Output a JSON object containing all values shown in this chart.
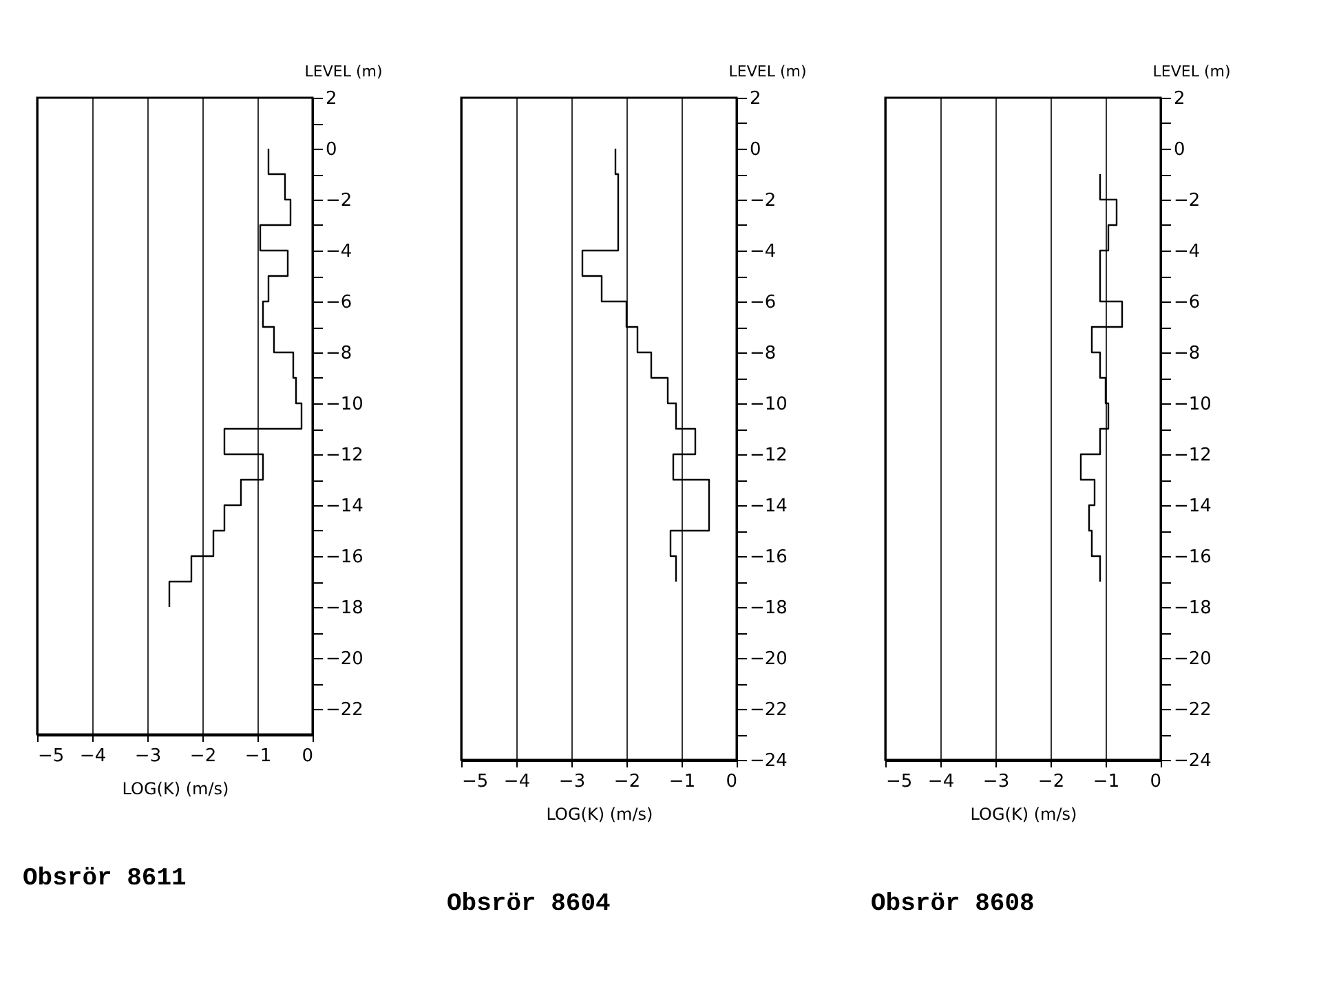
{
  "chart_data": [
    {
      "type": "line",
      "title": "Obsrör 8611",
      "xlabel": "LOG(K) (m/s)",
      "ylabel": "LEVEL (m)",
      "color": "#000000",
      "grid": "x",
      "xlim": [
        -5,
        0
      ],
      "xticks": [
        -5,
        -4,
        -3,
        -2,
        -1,
        0
      ],
      "ylim": [
        -23,
        2
      ],
      "yticks": [
        2,
        {
          "value": 1,
          "label": null
        },
        0,
        {
          "value": -1,
          "label": null
        },
        -2,
        {
          "value": -3,
          "label": null
        },
        -4,
        {
          "value": -5,
          "label": null
        },
        -6,
        {
          "value": -7,
          "label": null
        },
        -8,
        {
          "value": -9,
          "label": null
        },
        -10,
        {
          "value": -11,
          "label": null
        },
        -12,
        {
          "value": -13,
          "label": null
        },
        -14,
        {
          "value": -15,
          "label": null
        },
        -16,
        {
          "value": -17,
          "label": null
        },
        -18,
        {
          "value": -19,
          "label": null
        },
        -20,
        {
          "value": -21,
          "label": null
        },
        -22
      ],
      "x": [
        -0.8,
        -0.8,
        -0.5,
        -0.5,
        -0.4,
        -0.4,
        -0.95,
        -0.95,
        -0.45,
        -0.45,
        -0.8,
        -0.8,
        -0.9,
        -0.9,
        -0.7,
        -0.7,
        -0.35,
        -0.35,
        -0.3,
        -0.3,
        -0.2,
        -0.2,
        -1.6,
        -1.6,
        -0.9,
        -0.9,
        -1.3,
        -1.3,
        -1.6,
        -1.6,
        -1.8,
        -1.8,
        -2.2,
        -2.2,
        -2.6,
        -2.6
      ],
      "values": [
        0,
        -1,
        -1,
        -2,
        -2,
        -3,
        -3,
        -4,
        -4,
        -5,
        -5,
        -6,
        -6,
        -7,
        -7,
        -8,
        -8,
        -9,
        -9,
        -10,
        -10,
        -11,
        -11,
        -12,
        -12,
        -13,
        -13,
        -14,
        -14,
        -15,
        -15,
        -16,
        -16,
        -17,
        -17,
        -18
      ]
    },
    {
      "type": "line",
      "title": "Obsrör 8604",
      "xlabel": "LOG(K) (m/s)",
      "ylabel": "LEVEL (m)",
      "color": "#000000",
      "grid": "x",
      "xlim": [
        -5,
        0
      ],
      "xticks": [
        -5,
        -4,
        -3,
        -2,
        -1,
        0
      ],
      "ylim": [
        -24,
        2
      ],
      "yticks": [
        2,
        {
          "value": 1,
          "label": null
        },
        0,
        {
          "value": -1,
          "label": null
        },
        -2,
        {
          "value": -3,
          "label": null
        },
        -4,
        {
          "value": -5,
          "label": null
        },
        -6,
        {
          "value": -7,
          "label": null
        },
        -8,
        {
          "value": -9,
          "label": null
        },
        -10,
        {
          "value": -11,
          "label": null
        },
        -12,
        {
          "value": -13,
          "label": null
        },
        -14,
        {
          "value": -15,
          "label": null
        },
        -16,
        {
          "value": -17,
          "label": null
        },
        -18,
        {
          "value": -19,
          "label": null
        },
        -20,
        {
          "value": -21,
          "label": null
        },
        -22,
        {
          "value": -23,
          "label": null
        },
        -24
      ],
      "x": [
        -2.2,
        -2.2,
        -2.15,
        -2.15,
        -2.8,
        -2.8,
        -2.45,
        -2.45,
        -2.0,
        -2.0,
        -1.8,
        -1.8,
        -1.55,
        -1.55,
        -1.25,
        -1.25,
        -1.1,
        -1.1,
        -0.75,
        -0.75,
        -1.15,
        -1.15,
        -0.5,
        -0.5,
        -1.2,
        -1.2,
        -1.1,
        -1.1
      ],
      "values": [
        0,
        -1,
        -1,
        -4,
        -4,
        -5,
        -5,
        -6,
        -6,
        -7,
        -7,
        -8,
        -8,
        -9,
        -9,
        -10,
        -10,
        -11,
        -11,
        -12,
        -12,
        -13,
        -13,
        -15,
        -15,
        -16,
        -16,
        -17
      ]
    },
    {
      "type": "line",
      "title": "Obsrör 8608",
      "xlabel": "LOG(K) (m/s)",
      "ylabel": "LEVEL (m)",
      "color": "#000000",
      "grid": "x",
      "xlim": [
        -5,
        0
      ],
      "xticks": [
        -5,
        -4,
        -3,
        -2,
        -1,
        0
      ],
      "ylim": [
        -24,
        2
      ],
      "yticks": [
        2,
        {
          "value": 1,
          "label": null
        },
        0,
        {
          "value": -1,
          "label": null
        },
        -2,
        {
          "value": -3,
          "label": null
        },
        -4,
        {
          "value": -5,
          "label": null
        },
        -6,
        {
          "value": -7,
          "label": null
        },
        -8,
        {
          "value": -9,
          "label": null
        },
        -10,
        {
          "value": -11,
          "label": null
        },
        -12,
        {
          "value": -13,
          "label": null
        },
        -14,
        {
          "value": -15,
          "label": null
        },
        -16,
        {
          "value": -17,
          "label": null
        },
        -18,
        {
          "value": -19,
          "label": null
        },
        -20,
        {
          "value": -21,
          "label": null
        },
        -22,
        {
          "value": -23,
          "label": null
        },
        -24
      ],
      "x": [
        -1.1,
        -1.1,
        -0.8,
        -0.8,
        -0.95,
        -0.95,
        -1.1,
        -1.1,
        -0.7,
        -0.7,
        -1.25,
        -1.25,
        -1.1,
        -1.1,
        -1.0,
        -1.0,
        -0.95,
        -0.95,
        -1.1,
        -1.1,
        -1.45,
        -1.45,
        -1.2,
        -1.2,
        -1.3,
        -1.3,
        -1.25,
        -1.25,
        -1.1,
        -1.1
      ],
      "values": [
        -1,
        -2,
        -2,
        -3,
        -3,
        -4,
        -4,
        -6,
        -6,
        -7,
        -7,
        -8,
        -8,
        -9,
        -9,
        -10,
        -10,
        -11,
        -11,
        -12,
        -12,
        -13,
        -13,
        -14,
        -14,
        -15,
        -15,
        -16,
        -16,
        -17
      ]
    }
  ]
}
